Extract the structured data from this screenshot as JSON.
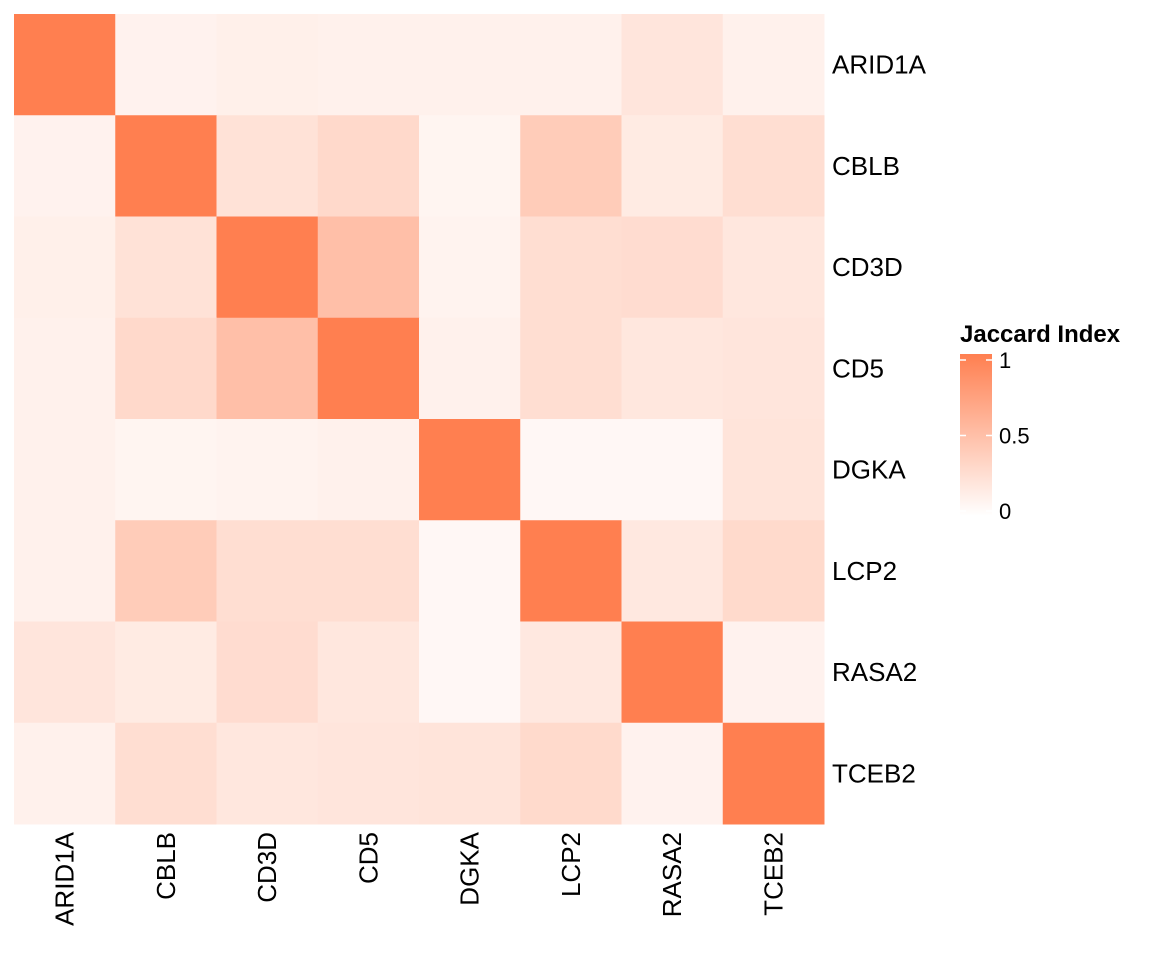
{
  "chart_data": {
    "type": "heatmap",
    "rows": [
      "ARID1A",
      "CBLB",
      "CD3D",
      "CD5",
      "DGKA",
      "LCP2",
      "RASA2",
      "TCEB2"
    ],
    "columns": [
      "ARID1A",
      "CBLB",
      "CD3D",
      "CD5",
      "DGKA",
      "LCP2",
      "RASA2",
      "TCEB2"
    ],
    "values": [
      [
        1.0,
        0.1,
        0.12,
        0.11,
        0.11,
        0.11,
        0.2,
        0.11
      ],
      [
        0.1,
        1.0,
        0.23,
        0.3,
        0.08,
        0.4,
        0.16,
        0.26
      ],
      [
        0.12,
        0.23,
        1.0,
        0.5,
        0.09,
        0.26,
        0.27,
        0.19
      ],
      [
        0.11,
        0.3,
        0.5,
        1.0,
        0.11,
        0.26,
        0.19,
        0.2
      ],
      [
        0.11,
        0.08,
        0.09,
        0.11,
        1.0,
        0.06,
        0.06,
        0.21
      ],
      [
        0.11,
        0.4,
        0.26,
        0.26,
        0.06,
        1.0,
        0.18,
        0.29
      ],
      [
        0.2,
        0.16,
        0.27,
        0.19,
        0.06,
        0.18,
        1.0,
        0.1
      ],
      [
        0.11,
        0.26,
        0.19,
        0.2,
        0.21,
        0.29,
        0.1,
        1.0
      ]
    ],
    "legend": {
      "title": "Jaccard Index",
      "ticks": [
        {
          "value": 1,
          "label": "1"
        },
        {
          "value": 0.5,
          "label": "0.5"
        },
        {
          "value": 0,
          "label": "0"
        }
      ],
      "range": [
        0,
        1
      ],
      "placement": "right"
    },
    "colors": {
      "low": "#ffffff",
      "high": "#ff7f50"
    }
  }
}
